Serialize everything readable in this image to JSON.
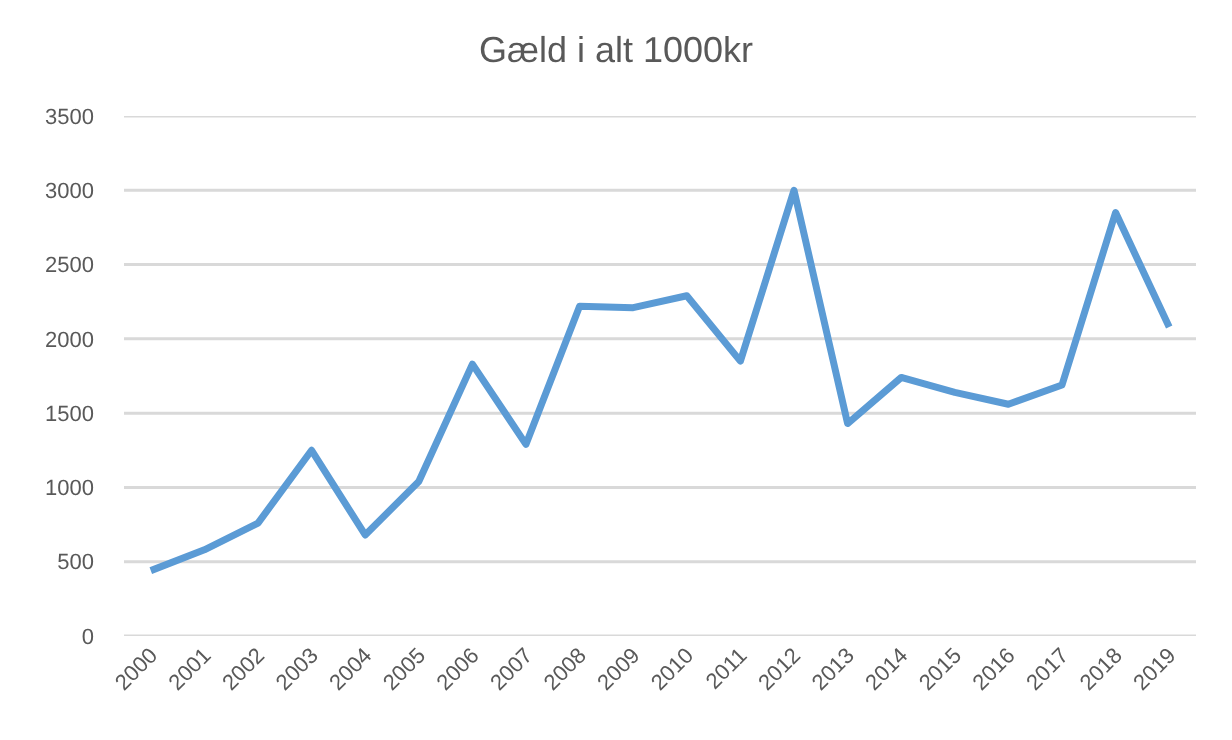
{
  "chart_data": {
    "type": "line",
    "title": "Gæld i alt 1000kr",
    "categories": [
      "2000",
      "2001",
      "2002",
      "2003",
      "2004",
      "2005",
      "2006",
      "2007",
      "2008",
      "2009",
      "2010",
      "2011",
      "2012",
      "2013",
      "2014",
      "2015",
      "2016",
      "2017",
      "2018",
      "2019"
    ],
    "series": [
      {
        "color": "#5b9bd5",
        "values": [
          440,
          580,
          760,
          1250,
          680,
          1040,
          1830,
          1290,
          2220,
          2210,
          2290,
          1850,
          3000,
          1430,
          1740,
          1640,
          1560,
          1690,
          2850,
          2080
        ]
      }
    ],
    "ylim": [
      0,
      3500
    ],
    "yticks": [
      0,
      500,
      1000,
      1500,
      2000,
      2500,
      3000,
      3500
    ],
    "grid": "y",
    "marker": "none",
    "line_style": "solid"
  }
}
